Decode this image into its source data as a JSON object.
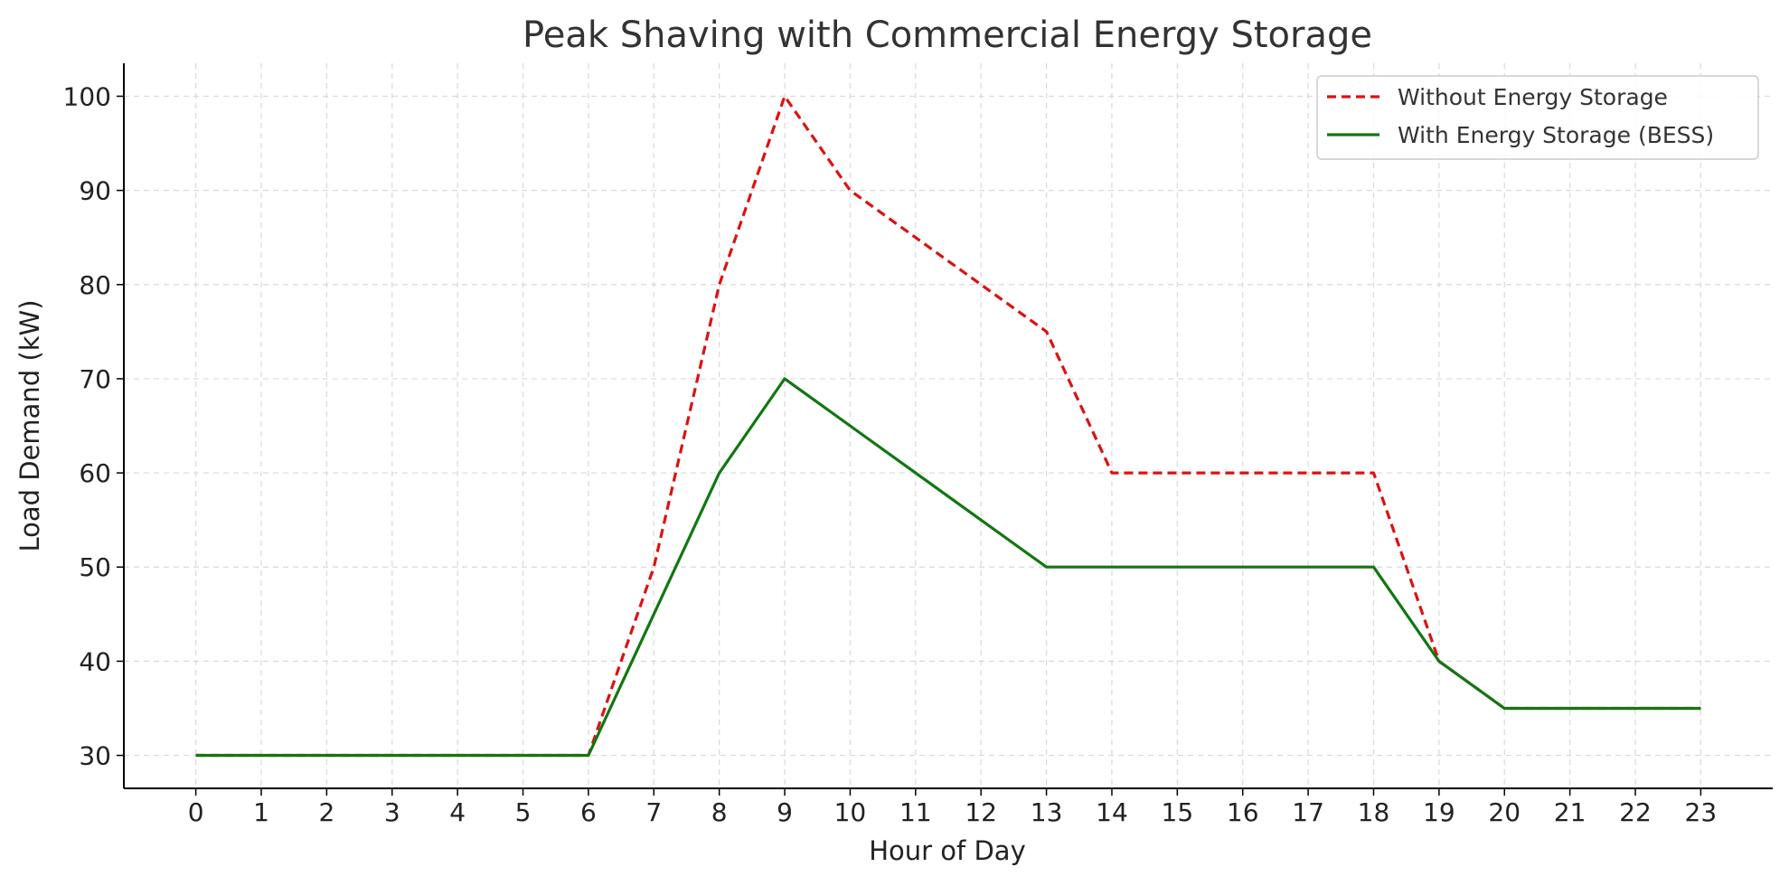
{
  "chart_data": {
    "type": "line",
    "title": "Peak Shaving with Commercial Energy Storage",
    "xlabel": "Hour of Day",
    "ylabel": "Load Demand (kW)",
    "x": [
      0,
      1,
      2,
      3,
      4,
      5,
      6,
      7,
      8,
      9,
      10,
      11,
      12,
      13,
      14,
      15,
      16,
      17,
      18,
      19,
      20,
      21,
      22,
      23
    ],
    "xlim": [
      -1.1,
      24.1
    ],
    "ylim": [
      26.5,
      103.5
    ],
    "yticks": [
      30,
      40,
      50,
      60,
      70,
      80,
      90,
      100
    ],
    "grid": true,
    "legend_position": "top-right",
    "series": [
      {
        "name": "Without Energy Storage",
        "color": "#dd1111",
        "style": "dashed",
        "values": [
          30,
          30,
          30,
          30,
          30,
          30,
          30,
          50,
          80,
          100,
          90,
          85,
          80,
          75,
          60,
          60,
          60,
          60,
          60,
          40,
          35,
          35,
          35,
          35
        ]
      },
      {
        "name": "With Energy Storage (BESS)",
        "color": "#117711",
        "style": "solid",
        "values": [
          30,
          30,
          30,
          30,
          30,
          30,
          30,
          45,
          60,
          70,
          65,
          60,
          55,
          50,
          50,
          50,
          50,
          50,
          50,
          40,
          35,
          35,
          35,
          35
        ]
      }
    ]
  }
}
